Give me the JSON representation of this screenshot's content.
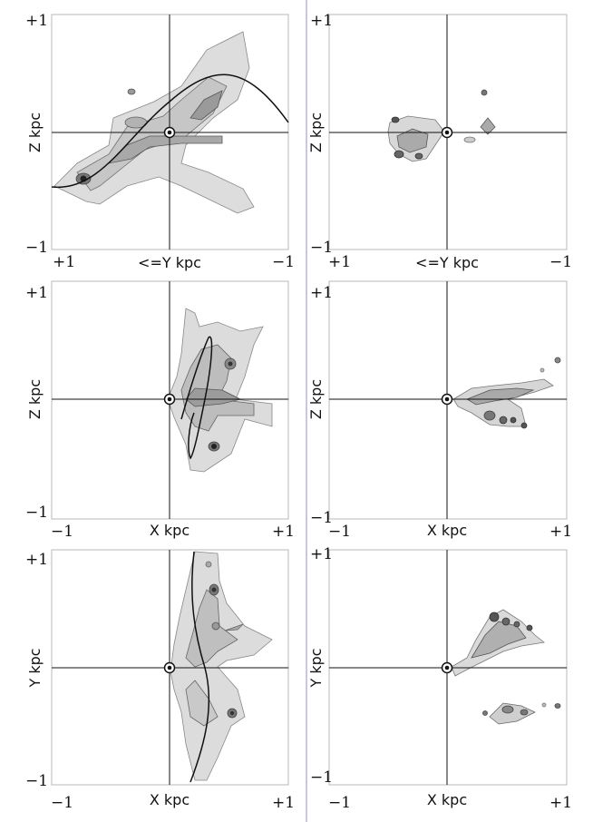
{
  "panels": [
    {
      "id": "p1",
      "ylabel": "Z kpc",
      "xlabel": "<=Y kpc",
      "yticks": [
        "+1",
        "−1"
      ],
      "xticks": [
        "+1",
        "−1"
      ],
      "curve": "wave"
    },
    {
      "id": "p2",
      "ylabel": "Z kpc",
      "xlabel": "<=Y kpc",
      "yticks": [
        "+1",
        "−1"
      ],
      "xticks": [
        "+1",
        "−1"
      ],
      "curve": "none"
    },
    {
      "id": "p3",
      "ylabel": "Z kpc",
      "xlabel": "X kpc",
      "yticks": [
        "+1",
        "−1"
      ],
      "xticks": [
        "−1",
        "+1"
      ],
      "curve": "loop"
    },
    {
      "id": "p4",
      "ylabel": "Z kpc",
      "xlabel": "X kpc",
      "yticks": [
        "+1",
        "−1"
      ],
      "xticks": [
        "−1",
        "+1"
      ],
      "curve": "none"
    },
    {
      "id": "p5",
      "ylabel": "Y kpc",
      "xlabel": "X kpc",
      "yticks": [
        "+1",
        "−1"
      ],
      "xticks": [
        "−1",
        "+1"
      ],
      "curve": "arc"
    },
    {
      "id": "p6",
      "ylabel": "Y kpc",
      "xlabel": "X kpc",
      "yticks": [
        "+1",
        "−1"
      ],
      "xticks": [
        "−1",
        "+1"
      ],
      "curve": "none"
    }
  ],
  "colors": {
    "frame": "#b8b8b8",
    "axis": "#111111",
    "contour_fill": "#d9d9d9",
    "contour_line": "#6f6f6f",
    "dark": "#2c2c2c",
    "divider": "#b5b5d8"
  }
}
